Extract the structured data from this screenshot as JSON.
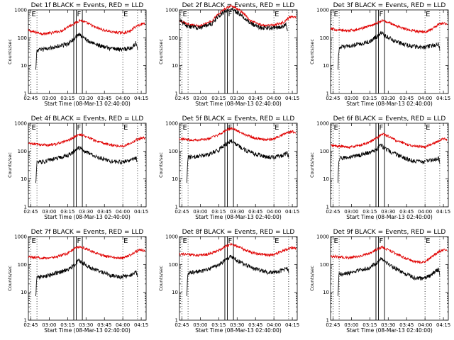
{
  "colors": {
    "events": "#000000",
    "lld": "#e00000"
  },
  "chart_data": {
    "type": "line",
    "scale": "log",
    "ylim": [
      1,
      1000
    ],
    "y_ticks": [
      1,
      10,
      100,
      1000
    ],
    "y_tick_labels": [
      "1",
      "10",
      "100",
      "1000"
    ],
    "x_ticks": [
      "02:45",
      "03:00",
      "03:15",
      "03:30",
      "03:45",
      "04:00",
      "04:15"
    ],
    "x_tick_minutes": [
      165,
      180,
      195,
      210,
      225,
      240,
      255
    ],
    "xlim_minutes": [
      163,
      259
    ],
    "ylabel": "Counts/sec",
    "xlabel": "Start Time (08-Mar-13 02:40:00)",
    "markers": [
      {
        "label": "E",
        "minute": 165,
        "style": "dotted"
      },
      {
        "label": "F",
        "minute": 202,
        "style": "solid"
      },
      {
        "label": "E",
        "minute": 240,
        "style": "dotted"
      }
    ],
    "extra_dotted_minutes": [
      170,
      252
    ],
    "flare_band_minutes": [
      200,
      207
    ],
    "detectors": [
      {
        "title": "Det 1f  BLACK = Events, RED = LLD",
        "events": [
          [
            169,
            0
          ],
          [
            170,
            35
          ],
          [
            177,
            40
          ],
          [
            186,
            48
          ],
          [
            195,
            60
          ],
          [
            201,
            95
          ],
          [
            204,
            135
          ],
          [
            208,
            100
          ],
          [
            213,
            70
          ],
          [
            220,
            55
          ],
          [
            226,
            45
          ],
          [
            233,
            40
          ],
          [
            240,
            38
          ],
          [
            248,
            45
          ],
          [
            251,
            70
          ],
          [
            252,
            35
          ]
        ],
        "lld": [
          [
            163,
            180
          ],
          [
            168,
            160
          ],
          [
            175,
            140
          ],
          [
            182,
            150
          ],
          [
            190,
            175
          ],
          [
            196,
            260
          ],
          [
            201,
            330
          ],
          [
            205,
            430
          ],
          [
            210,
            350
          ],
          [
            217,
            240
          ],
          [
            224,
            190
          ],
          [
            232,
            160
          ],
          [
            240,
            150
          ],
          [
            246,
            170
          ],
          [
            251,
            260
          ],
          [
            255,
            310
          ],
          [
            258,
            330
          ]
        ]
      },
      {
        "title": "Det 2f  BLACK = Events, RED = LLD",
        "events": [
          [
            163,
            420
          ],
          [
            170,
            260
          ],
          [
            180,
            220
          ],
          [
            190,
            330
          ],
          [
            197,
            700
          ],
          [
            202,
            950
          ],
          [
            206,
            1050
          ],
          [
            212,
            700
          ],
          [
            220,
            340
          ],
          [
            230,
            220
          ],
          [
            240,
            230
          ],
          [
            248,
            260
          ],
          [
            250,
            320
          ],
          [
            251,
            160
          ]
        ],
        "lld": [
          [
            163,
            430
          ],
          [
            170,
            300
          ],
          [
            180,
            260
          ],
          [
            190,
            400
          ],
          [
            197,
            850
          ],
          [
            202,
            1250
          ],
          [
            206,
            1400
          ],
          [
            212,
            950
          ],
          [
            220,
            420
          ],
          [
            230,
            280
          ],
          [
            240,
            290
          ],
          [
            248,
            360
          ],
          [
            253,
            550
          ],
          [
            258,
            600
          ]
        ]
      },
      {
        "title": "Det 3f  BLACK = Events, RED = LLD",
        "events": [
          [
            169,
            0
          ],
          [
            170,
            45
          ],
          [
            178,
            50
          ],
          [
            186,
            60
          ],
          [
            195,
            75
          ],
          [
            201,
            110
          ],
          [
            204,
            150
          ],
          [
            208,
            115
          ],
          [
            214,
            80
          ],
          [
            222,
            60
          ],
          [
            230,
            50
          ],
          [
            238,
            45
          ],
          [
            248,
            55
          ],
          [
            251,
            60
          ],
          [
            252,
            40
          ]
        ],
        "lld": [
          [
            163,
            210
          ],
          [
            170,
            190
          ],
          [
            178,
            180
          ],
          [
            186,
            200
          ],
          [
            195,
            270
          ],
          [
            201,
            340
          ],
          [
            205,
            420
          ],
          [
            210,
            360
          ],
          [
            217,
            260
          ],
          [
            225,
            200
          ],
          [
            233,
            170
          ],
          [
            240,
            160
          ],
          [
            246,
            210
          ],
          [
            251,
            300
          ],
          [
            255,
            340
          ],
          [
            258,
            320
          ]
        ]
      },
      {
        "title": "Det 4f  BLACK = Events, RED = LLD",
        "events": [
          [
            169,
            0
          ],
          [
            170,
            40
          ],
          [
            178,
            45
          ],
          [
            186,
            55
          ],
          [
            195,
            70
          ],
          [
            201,
            100
          ],
          [
            204,
            135
          ],
          [
            208,
            105
          ],
          [
            214,
            75
          ],
          [
            222,
            55
          ],
          [
            230,
            45
          ],
          [
            238,
            40
          ],
          [
            246,
            45
          ],
          [
            251,
            55
          ],
          [
            252,
            40
          ]
        ],
        "lld": [
          [
            163,
            190
          ],
          [
            170,
            175
          ],
          [
            178,
            165
          ],
          [
            186,
            180
          ],
          [
            195,
            230
          ],
          [
            201,
            330
          ],
          [
            205,
            400
          ],
          [
            210,
            340
          ],
          [
            217,
            240
          ],
          [
            225,
            185
          ],
          [
            233,
            160
          ],
          [
            240,
            150
          ],
          [
            246,
            190
          ],
          [
            251,
            250
          ],
          [
            255,
            300
          ],
          [
            258,
            290
          ]
        ]
      },
      {
        "title": "Det 5f  BLACK = Events, RED = LLD",
        "events": [
          [
            169,
            0
          ],
          [
            170,
            60
          ],
          [
            178,
            65
          ],
          [
            186,
            75
          ],
          [
            195,
            110
          ],
          [
            201,
            180
          ],
          [
            205,
            240
          ],
          [
            210,
            160
          ],
          [
            217,
            110
          ],
          [
            224,
            80
          ],
          [
            232,
            65
          ],
          [
            240,
            60
          ],
          [
            246,
            70
          ],
          [
            251,
            85
          ],
          [
            252,
            60
          ]
        ],
        "lld": [
          [
            163,
            280
          ],
          [
            170,
            260
          ],
          [
            178,
            250
          ],
          [
            186,
            270
          ],
          [
            195,
            380
          ],
          [
            201,
            560
          ],
          [
            205,
            650
          ],
          [
            210,
            540
          ],
          [
            217,
            380
          ],
          [
            225,
            290
          ],
          [
            233,
            260
          ],
          [
            240,
            270
          ],
          [
            246,
            360
          ],
          [
            251,
            450
          ],
          [
            255,
            500
          ],
          [
            258,
            430
          ]
        ]
      },
      {
        "title": "Det 6f  BLACK = Events, RED = LLD",
        "events": [
          [
            169,
            0
          ],
          [
            170,
            55
          ],
          [
            178,
            60
          ],
          [
            186,
            70
          ],
          [
            195,
            90
          ],
          [
            201,
            120
          ],
          [
            204,
            160
          ],
          [
            208,
            120
          ],
          [
            214,
            85
          ],
          [
            222,
            60
          ],
          [
            230,
            45
          ],
          [
            238,
            40
          ],
          [
            246,
            48
          ],
          [
            251,
            55
          ],
          [
            252,
            40
          ]
        ],
        "lld": [
          [
            163,
            160
          ],
          [
            170,
            150
          ],
          [
            178,
            140
          ],
          [
            186,
            155
          ],
          [
            195,
            210
          ],
          [
            201,
            300
          ],
          [
            205,
            420
          ],
          [
            210,
            340
          ],
          [
            217,
            230
          ],
          [
            225,
            175
          ],
          [
            233,
            150
          ],
          [
            240,
            140
          ],
          [
            246,
            180
          ],
          [
            251,
            230
          ],
          [
            255,
            280
          ],
          [
            258,
            270
          ]
        ]
      },
      {
        "title": "Det 7f  BLACK = Events, RED = LLD",
        "events": [
          [
            169,
            0
          ],
          [
            170,
            35
          ],
          [
            178,
            40
          ],
          [
            186,
            50
          ],
          [
            195,
            65
          ],
          [
            201,
            100
          ],
          [
            204,
            140
          ],
          [
            208,
            110
          ],
          [
            214,
            75
          ],
          [
            222,
            55
          ],
          [
            230,
            40
          ],
          [
            238,
            35
          ],
          [
            246,
            40
          ],
          [
            251,
            55
          ],
          [
            252,
            35
          ]
        ],
        "lld": [
          [
            163,
            190
          ],
          [
            170,
            175
          ],
          [
            178,
            170
          ],
          [
            186,
            185
          ],
          [
            195,
            250
          ],
          [
            201,
            380
          ],
          [
            205,
            440
          ],
          [
            210,
            370
          ],
          [
            217,
            260
          ],
          [
            225,
            200
          ],
          [
            233,
            175
          ],
          [
            240,
            170
          ],
          [
            246,
            220
          ],
          [
            251,
            300
          ],
          [
            255,
            330
          ],
          [
            258,
            310
          ]
        ]
      },
      {
        "title": "Det 8f  BLACK = Events, RED = LLD",
        "events": [
          [
            169,
            0
          ],
          [
            170,
            50
          ],
          [
            178,
            55
          ],
          [
            186,
            65
          ],
          [
            195,
            95
          ],
          [
            201,
            150
          ],
          [
            205,
            200
          ],
          [
            210,
            140
          ],
          [
            217,
            95
          ],
          [
            224,
            70
          ],
          [
            232,
            55
          ],
          [
            240,
            50
          ],
          [
            246,
            60
          ],
          [
            251,
            75
          ],
          [
            252,
            50
          ]
        ],
        "lld": [
          [
            163,
            240
          ],
          [
            170,
            225
          ],
          [
            178,
            215
          ],
          [
            186,
            230
          ],
          [
            195,
            320
          ],
          [
            201,
            460
          ],
          [
            205,
            540
          ],
          [
            210,
            450
          ],
          [
            217,
            320
          ],
          [
            225,
            250
          ],
          [
            233,
            220
          ],
          [
            240,
            220
          ],
          [
            246,
            290
          ],
          [
            251,
            360
          ],
          [
            255,
            400
          ],
          [
            258,
            370
          ]
        ]
      },
      {
        "title": "Det 9f  BLACK = Events, RED = LLD",
        "events": [
          [
            169,
            0
          ],
          [
            170,
            45
          ],
          [
            178,
            50
          ],
          [
            186,
            60
          ],
          [
            195,
            80
          ],
          [
            201,
            120
          ],
          [
            204,
            170
          ],
          [
            208,
            120
          ],
          [
            214,
            80
          ],
          [
            222,
            50
          ],
          [
            230,
            35
          ],
          [
            238,
            30
          ],
          [
            246,
            45
          ],
          [
            251,
            70
          ],
          [
            252,
            45
          ]
        ],
        "lld": [
          [
            163,
            200
          ],
          [
            170,
            185
          ],
          [
            178,
            175
          ],
          [
            186,
            190
          ],
          [
            195,
            250
          ],
          [
            201,
            350
          ],
          [
            205,
            420
          ],
          [
            210,
            340
          ],
          [
            217,
            230
          ],
          [
            225,
            160
          ],
          [
            233,
            120
          ],
          [
            240,
            125
          ],
          [
            246,
            190
          ],
          [
            251,
            280
          ],
          [
            255,
            330
          ],
          [
            258,
            310
          ]
        ]
      }
    ]
  }
}
